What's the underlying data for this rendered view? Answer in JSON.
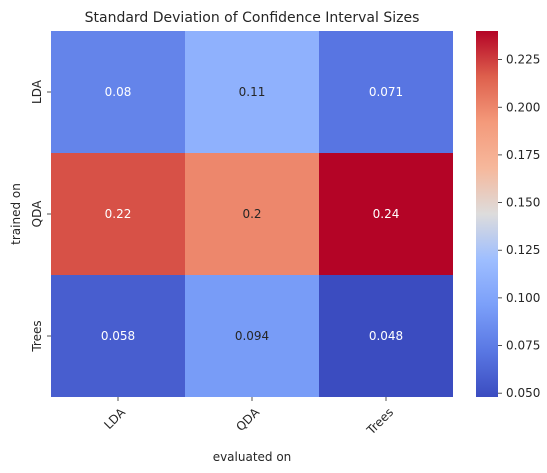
{
  "chart_data": {
    "type": "heatmap",
    "title": "Standard Deviation of Confidence Interval Sizes",
    "xlabel": "evaluated on",
    "ylabel": "trained on",
    "x_categories": [
      "LDA",
      "QDA",
      "Trees"
    ],
    "y_categories": [
      "LDA",
      "QDA",
      "Trees"
    ],
    "values": [
      [
        0.08,
        0.11,
        0.071
      ],
      [
        0.22,
        0.2,
        0.24
      ],
      [
        0.058,
        0.094,
        0.048
      ]
    ],
    "cell_labels": [
      [
        "0.08",
        "0.11",
        "0.071"
      ],
      [
        "0.22",
        "0.2",
        "0.24"
      ],
      [
        "0.058",
        "0.094",
        "0.048"
      ]
    ],
    "colormap": "coolwarm",
    "color_range": [
      0.048,
      0.24
    ],
    "colorbar_ticks": [
      "0.050",
      "0.075",
      "0.100",
      "0.125",
      "0.150",
      "0.175",
      "0.200",
      "0.225"
    ],
    "grid": false
  }
}
